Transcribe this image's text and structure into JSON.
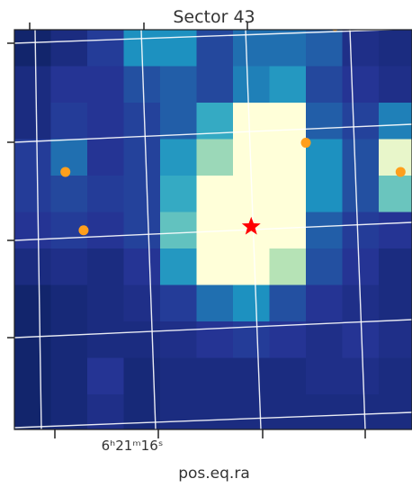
{
  "chart_data": {
    "type": "heatmap",
    "title": "Sector 43",
    "xlabel": "pos.eq.ra",
    "ylabel": "",
    "x_tick_label": "6ʰ21ᵐ16ˢ",
    "colormap": "YlGnBu",
    "grid": true,
    "rows": 11,
    "cols": 11,
    "values": [
      [
        0.05,
        0.1,
        0.18,
        0.45,
        0.45,
        0.22,
        0.35,
        0.35,
        0.3,
        0.12,
        0.1
      ],
      [
        0.1,
        0.15,
        0.15,
        0.25,
        0.3,
        0.22,
        0.4,
        0.48,
        0.22,
        0.15,
        0.12
      ],
      [
        0.1,
        0.18,
        0.15,
        0.2,
        0.3,
        0.55,
        1.0,
        1.0,
        0.3,
        0.2,
        0.4
      ],
      [
        0.18,
        0.35,
        0.15,
        0.2,
        0.48,
        0.8,
        1.0,
        1.0,
        0.45,
        0.25,
        0.95
      ],
      [
        0.18,
        0.22,
        0.18,
        0.2,
        0.55,
        1.0,
        1.0,
        1.0,
        0.45,
        0.25,
        0.7
      ],
      [
        0.15,
        0.18,
        0.15,
        0.2,
        0.68,
        1.0,
        1.0,
        1.0,
        0.3,
        0.18,
        0.15
      ],
      [
        0.1,
        0.12,
        0.1,
        0.15,
        0.48,
        1.0,
        1.0,
        0.85,
        0.25,
        0.15,
        0.1
      ],
      [
        0.05,
        0.08,
        0.1,
        0.12,
        0.18,
        0.35,
        0.45,
        0.25,
        0.15,
        0.12,
        0.1
      ],
      [
        0.05,
        0.08,
        0.1,
        0.1,
        0.12,
        0.15,
        0.18,
        0.15,
        0.12,
        0.15,
        0.12
      ],
      [
        0.05,
        0.08,
        0.15,
        0.08,
        0.1,
        0.1,
        0.1,
        0.1,
        0.12,
        0.12,
        0.1
      ],
      [
        0.05,
        0.08,
        0.12,
        0.08,
        0.1,
        0.1,
        0.1,
        0.1,
        0.1,
        0.1,
        0.1
      ]
    ],
    "target": {
      "col": 6.5,
      "row": 5.4,
      "color": "#ff0000"
    },
    "neighbor_stars": [
      {
        "col": 8.0,
        "row": 3.1
      },
      {
        "col": 1.4,
        "row": 3.9
      },
      {
        "col": 1.9,
        "row": 5.5
      },
      {
        "col": 10.6,
        "row": 3.9
      },
      {
        "col": 8.8,
        "row": -0.1
      }
    ],
    "neighbor_color": "#ff9f1c"
  }
}
